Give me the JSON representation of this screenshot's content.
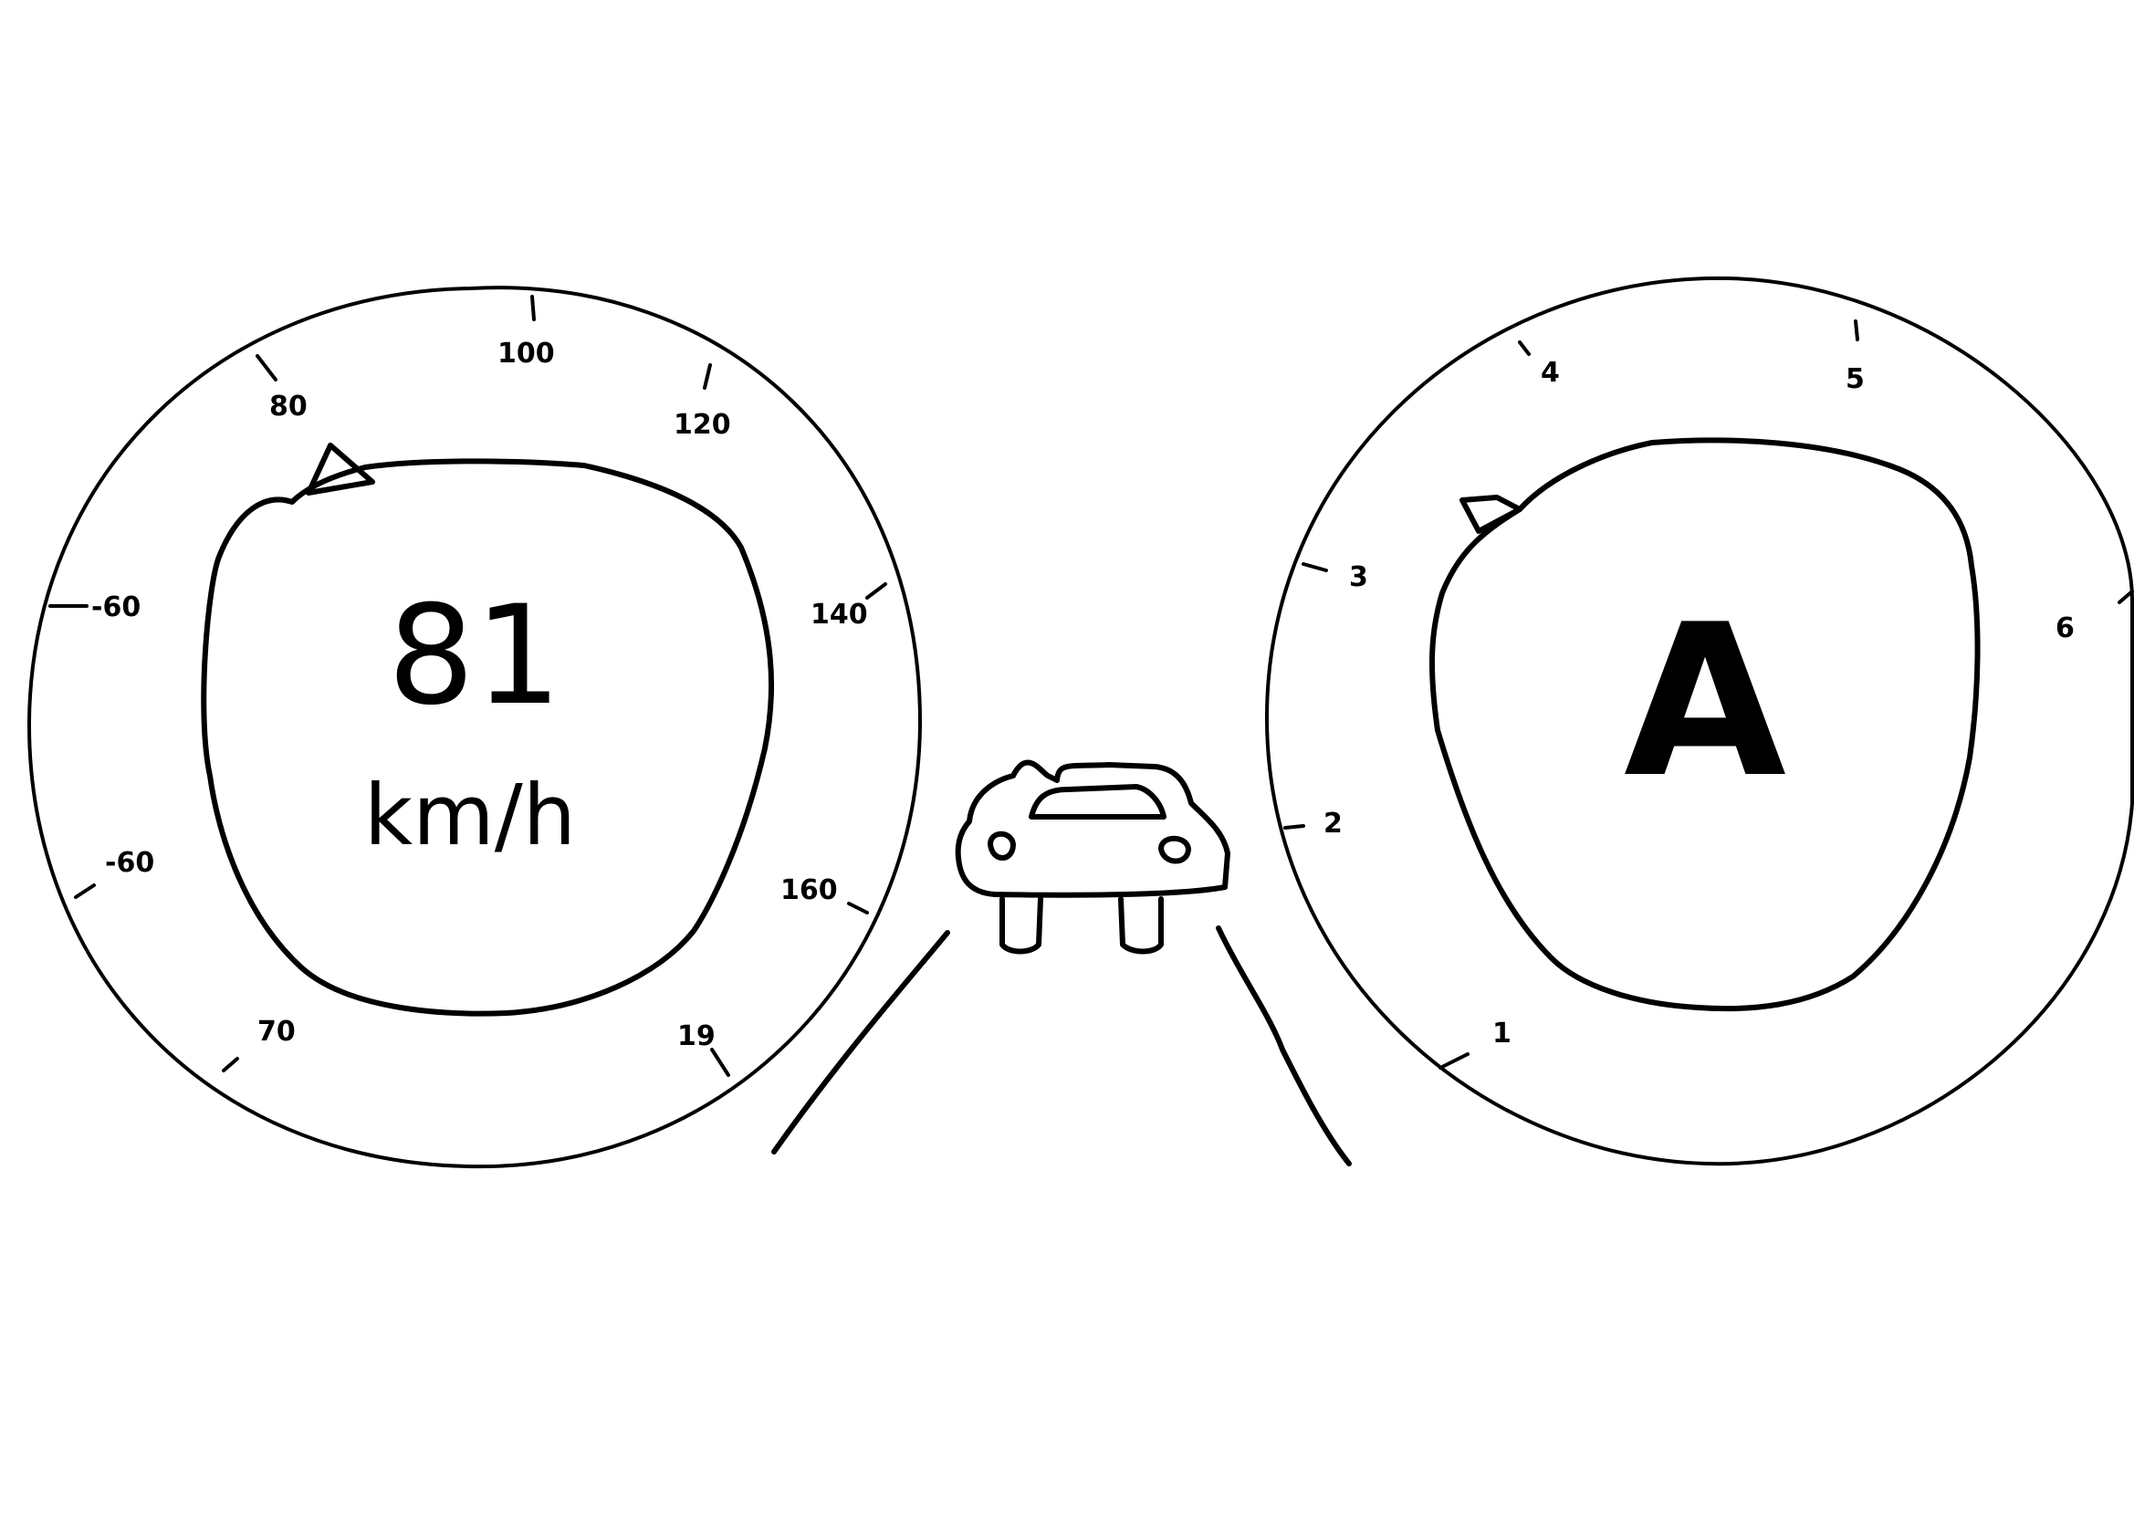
{
  "speedometer": {
    "value": "81",
    "unit": "km/h",
    "ticks": [
      {
        "id": "a",
        "label": "-60"
      },
      {
        "id": "b",
        "label": "80"
      },
      {
        "id": "c",
        "label": "100"
      },
      {
        "id": "d",
        "label": "120"
      },
      {
        "id": "e",
        "label": "140"
      },
      {
        "id": "f",
        "label": "-60"
      },
      {
        "id": "g",
        "label": "160"
      },
      {
        "id": "h",
        "label": "70"
      },
      {
        "id": "i",
        "label": "19"
      }
    ]
  },
  "gear_indicator": {
    "value": "A",
    "ticks": [
      {
        "id": "a",
        "label": "1"
      },
      {
        "id": "b",
        "label": "2"
      },
      {
        "id": "c",
        "label": "3"
      },
      {
        "id": "d",
        "label": "4"
      },
      {
        "id": "e",
        "label": "5"
      },
      {
        "id": "f",
        "label": "6"
      }
    ]
  },
  "colors": {
    "ink": "#000000",
    "paper": "#ffffff"
  },
  "icons": {
    "speed_pointer": "triangle-pointer-icon",
    "gear_pointer": "triangle-pointer-icon",
    "car": "car-icon",
    "road": "road-lines-icon"
  }
}
